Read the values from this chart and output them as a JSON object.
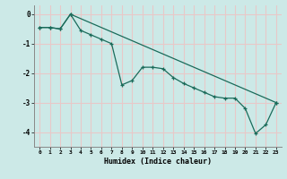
{
  "xlabel": "Humidex (Indice chaleur)",
  "bg_color": "#cce9e7",
  "line_color": "#1a6b5a",
  "grid_color": "#e8c8c8",
  "line1_x": [
    0,
    1,
    2,
    3,
    4,
    5,
    6,
    7,
    8,
    9,
    10,
    11,
    12,
    13,
    14,
    15,
    16,
    17,
    18,
    19,
    20,
    21,
    22,
    23
  ],
  "line1_y": [
    -0.45,
    -0.45,
    -0.5,
    0.0,
    -0.55,
    -0.7,
    -0.85,
    -1.0,
    -2.4,
    -2.25,
    -1.8,
    -1.8,
    -1.85,
    -2.15,
    -2.35,
    -2.5,
    -2.65,
    -2.8,
    -2.85,
    -2.85,
    -3.2,
    -4.05,
    -3.75,
    -3.0
  ],
  "line2_x": [
    0,
    1,
    2,
    3,
    23
  ],
  "line2_y": [
    -0.45,
    -0.45,
    -0.5,
    0.0,
    -3.0
  ],
  "ylim": [
    -4.5,
    0.3
  ],
  "xlim": [
    -0.5,
    23.5
  ],
  "yticks": [
    0,
    -1,
    -2,
    -3,
    -4
  ],
  "xtick_labels": [
    "0",
    "1",
    "2",
    "3",
    "4",
    "5",
    "6",
    "7",
    "8",
    "9",
    "10",
    "11",
    "12",
    "13",
    "14",
    "15",
    "16",
    "17",
    "18",
    "19",
    "20",
    "21",
    "22",
    "23"
  ]
}
